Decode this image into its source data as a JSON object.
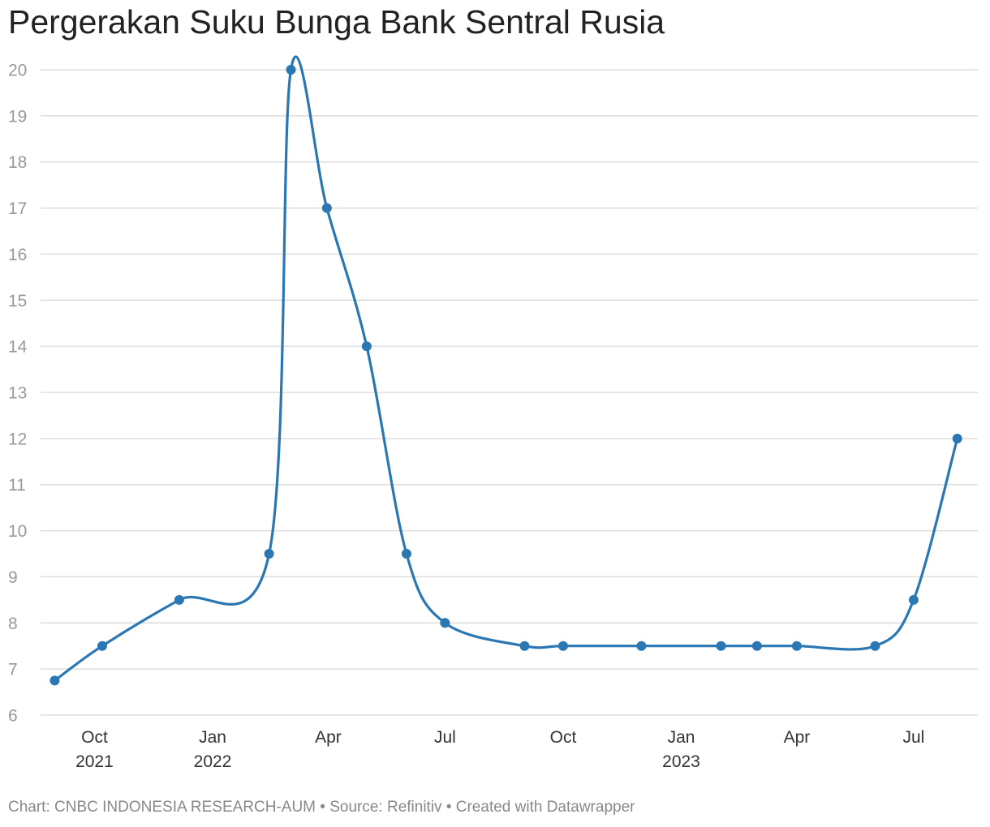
{
  "title": "Pergerakan Suku Bunga Bank Sentral Rusia",
  "footer": "Chart: CNBC INDONESIA RESEARCH-AUM • Source: Refinitiv • Created with Datawrapper",
  "colors": {
    "line": "#2a77b4",
    "grid": "#dddddd",
    "tick": "#999999",
    "xlabel": "#333333"
  },
  "chart_data": {
    "type": "line",
    "title": "Pergerakan Suku Bunga Bank Sentral Rusia",
    "xlabel": "",
    "ylabel": "",
    "ylim": [
      6,
      20
    ],
    "xlim": [
      "2021-08-20",
      "2023-08-20"
    ],
    "y_ticks": [
      6,
      7,
      8,
      9,
      10,
      11,
      12,
      13,
      14,
      15,
      16,
      17,
      18,
      19,
      20
    ],
    "x_ticks": [
      {
        "date": "2021-10-01",
        "label": "Oct",
        "year": "2021"
      },
      {
        "date": "2022-01-01",
        "label": "Jan",
        "year": "2022"
      },
      {
        "date": "2022-04-01",
        "label": "Apr",
        "year": ""
      },
      {
        "date": "2022-07-01",
        "label": "Jul",
        "year": ""
      },
      {
        "date": "2022-10-01",
        "label": "Oct",
        "year": ""
      },
      {
        "date": "2023-01-01",
        "label": "Jan",
        "year": "2023"
      },
      {
        "date": "2023-04-01",
        "label": "Apr",
        "year": ""
      },
      {
        "date": "2023-07-01",
        "label": "Jul",
        "year": ""
      }
    ],
    "grid": true,
    "legend": "none",
    "series": [
      {
        "points": [
          {
            "x": "2021-08-31",
            "y": 6.75
          },
          {
            "x": "2021-10-07",
            "y": 7.5
          },
          {
            "x": "2021-12-06",
            "y": 8.5
          },
          {
            "x": "2022-02-14",
            "y": 9.5
          },
          {
            "x": "2022-03-03",
            "y": 20
          },
          {
            "x": "2022-03-31",
            "y": 17
          },
          {
            "x": "2022-05-01",
            "y": 14
          },
          {
            "x": "2022-06-01",
            "y": 9.5
          },
          {
            "x": "2022-07-01",
            "y": 8
          },
          {
            "x": "2022-09-01",
            "y": 7.5
          },
          {
            "x": "2022-10-01",
            "y": 7.5
          },
          {
            "x": "2022-12-01",
            "y": 7.5
          },
          {
            "x": "2023-02-01",
            "y": 7.5
          },
          {
            "x": "2023-03-01",
            "y": 7.5
          },
          {
            "x": "2023-04-01",
            "y": 7.5
          },
          {
            "x": "2023-06-01",
            "y": 7.5
          },
          {
            "x": "2023-07-01",
            "y": 8.5
          },
          {
            "x": "2023-08-04",
            "y": 12
          }
        ]
      }
    ]
  }
}
